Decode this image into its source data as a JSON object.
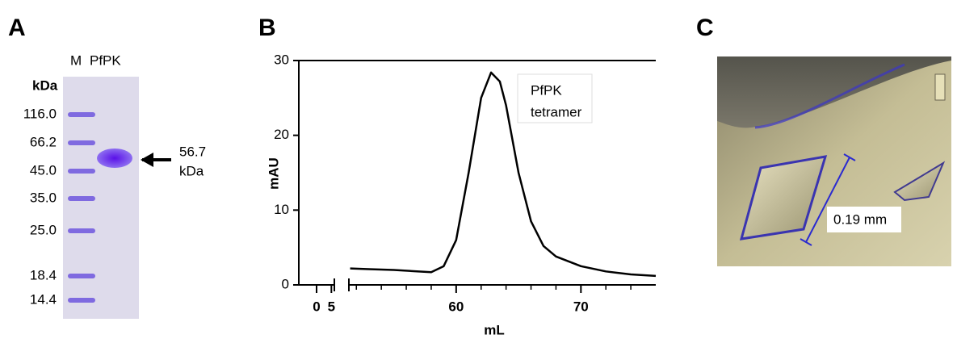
{
  "panel_a": {
    "letter": "A",
    "lanes": [
      "M",
      "PfPK"
    ],
    "unit": "kDa",
    "markers": [
      "116.0",
      "66.2",
      "45.0",
      "35.0",
      "25.0",
      "18.4",
      "14.4"
    ],
    "band_label": [
      "56.7",
      "kDa"
    ]
  },
  "chart_data": {
    "type": "line",
    "panel_letter": "B",
    "xlabel": "mL",
    "ylabel": "mAU",
    "annotation": [
      "PfPK",
      "tetramer"
    ],
    "x": [
      51.5,
      53,
      55,
      57,
      58,
      59,
      60,
      61,
      62,
      62.8,
      63.5,
      64,
      65,
      66,
      67,
      68,
      70,
      72,
      74,
      76
    ],
    "series": [
      {
        "name": "PfPK",
        "color": "#000000",
        "values": [
          2.2,
          2.1,
          2.0,
          1.8,
          1.7,
          2.5,
          6,
          15,
          25,
          28.4,
          27.2,
          24,
          15,
          8.5,
          5.2,
          3.8,
          2.5,
          1.8,
          1.4,
          1.2
        ]
      }
    ],
    "xlim": [
      -6,
      76
    ],
    "x_break": [
      6,
      51.4
    ],
    "xticks": [
      0,
      5,
      60,
      70
    ],
    "minor_xticks": [
      52,
      54,
      56,
      58,
      62,
      64,
      66,
      68,
      72,
      74
    ],
    "ylim": [
      0,
      30
    ],
    "yticks": [
      0,
      10,
      20,
      30
    ]
  },
  "panel_c": {
    "letter": "C",
    "scale_label": "0.19 mm"
  }
}
